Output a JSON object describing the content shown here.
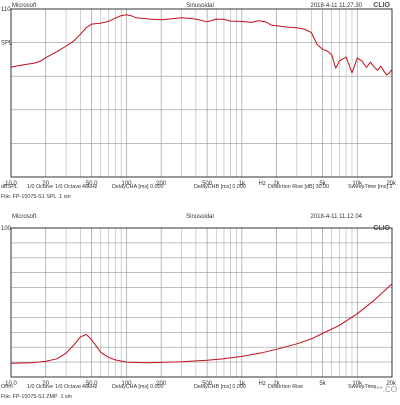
{
  "colors": {
    "curve": "#c0101a",
    "grid": "#9a9a9a",
    "frame": "#333333",
    "text": "#333333"
  },
  "chart_data": [
    {
      "type": "line",
      "header": {
        "left": "Microsoft",
        "center": "Sinusoidal",
        "right": "2018-4-11 11.27.30",
        "brand": "CLIO"
      },
      "xscale": "log",
      "xlim": [
        10,
        20000
      ],
      "ylim": [
        60,
        110
      ],
      "grid": true,
      "ytick_labels": [
        "110",
        "SPL",
        "",
        "",
        "",
        ""
      ],
      "xtick_labels": [
        "10.0",
        "20",
        "50.0",
        "100",
        "200",
        "500",
        "1k",
        "Hz",
        "2k",
        "5k",
        "10k",
        "20k"
      ],
      "footer": [
        "dBSPL",
        "1/0 Octave",
        "1/0 Octave",
        "48kHz",
        "DelayCHA [ms] 0.000",
        "DelayCHB [ms] 0.000",
        "Distortion Rise [dB] 30.00",
        "SweepTime [ms] 2"
      ],
      "file": "File: FP-15075-S1 SPL .1 sin",
      "series": [
        {
          "x": [
            10,
            12,
            14,
            16,
            18,
            20,
            25,
            30,
            35,
            40,
            45,
            50,
            60,
            70,
            80,
            90,
            100,
            110,
            120,
            140,
            160,
            200,
            250,
            300,
            350,
            400,
            500,
            600,
            700,
            800,
            1000,
            1200,
            1400,
            1600,
            1800,
            2000,
            2500,
            3000,
            3500,
            4000,
            4500,
            5000,
            5500,
            6000,
            6500,
            7000,
            8000,
            9000,
            10000,
            11000,
            12000,
            13000,
            14000,
            15000,
            16000,
            17000,
            18000,
            19000,
            20000
          ],
          "y": [
            92.7,
            93.2,
            93.6,
            93.9,
            94.5,
            95.5,
            97.3,
            99.0,
            100.5,
            102.5,
            104.5,
            105.5,
            105.8,
            106.3,
            107.3,
            108.0,
            108.3,
            108.0,
            107.4,
            107.2,
            107.0,
            106.8,
            107.1,
            107.4,
            107.2,
            107.0,
            106.2,
            107.0,
            106.9,
            106.4,
            106.3,
            106.0,
            106.5,
            106.2,
            105.2,
            105.0,
            104.6,
            104.4,
            104.0,
            103.0,
            99.4,
            98.0,
            97.5,
            96.4,
            92.4,
            94.5,
            95.7,
            91.0,
            95.4,
            94.5,
            92.6,
            94.2,
            92.7,
            91.8,
            93.0,
            91.5,
            90.4,
            91.0,
            92.0
          ]
        }
      ]
    },
    {
      "type": "line",
      "header": {
        "left": "Microsoft",
        "center": "Sinusoidal",
        "right": "2018-4-11 11.12.04",
        "brand": "CLIO"
      },
      "xscale": "log",
      "xlim": [
        10,
        20000
      ],
      "ylim": [
        0,
        100
      ],
      "grid": true,
      "ytick_labels": [
        "100",
        "",
        "",
        "",
        "",
        "",
        "",
        "",
        "",
        "",
        ""
      ],
      "xtick_labels": [
        "10.0",
        "20",
        "50.0",
        "100",
        "200",
        "500",
        "1k",
        "Hz",
        "2k",
        "5k",
        "10k",
        "20k"
      ],
      "footer": [
        "Ohm",
        "1/0 Octave",
        "1/0 Octave",
        "48kHz",
        "DelayCHA [ms] 0.000",
        "DelayCHB [ms] 0.000",
        "Distortion Rise",
        "SweepTime"
      ],
      "file": "File: FP-15075-S1 ZMP .1 sin",
      "watermark": "***.CO",
      "series": [
        {
          "x": [
            10,
            15,
            20,
            25,
            30,
            35,
            40,
            45,
            50,
            55,
            60,
            70,
            80,
            100,
            150,
            200,
            300,
            500,
            700,
            1000,
            1500,
            2000,
            3000,
            4000,
            5000,
            7000,
            10000,
            14000,
            20000
          ],
          "y": [
            9.2,
            9.5,
            10.5,
            12.2,
            16.0,
            21.5,
            27.0,
            28.5,
            25.0,
            20.5,
            16.5,
            13.2,
            11.5,
            10.0,
            9.6,
            9.8,
            10.3,
            11.3,
            12.3,
            13.8,
            16.3,
            18.6,
            22.3,
            25.6,
            29.2,
            34.7,
            42.5,
            51.5,
            62.5
          ]
        }
      ]
    }
  ]
}
